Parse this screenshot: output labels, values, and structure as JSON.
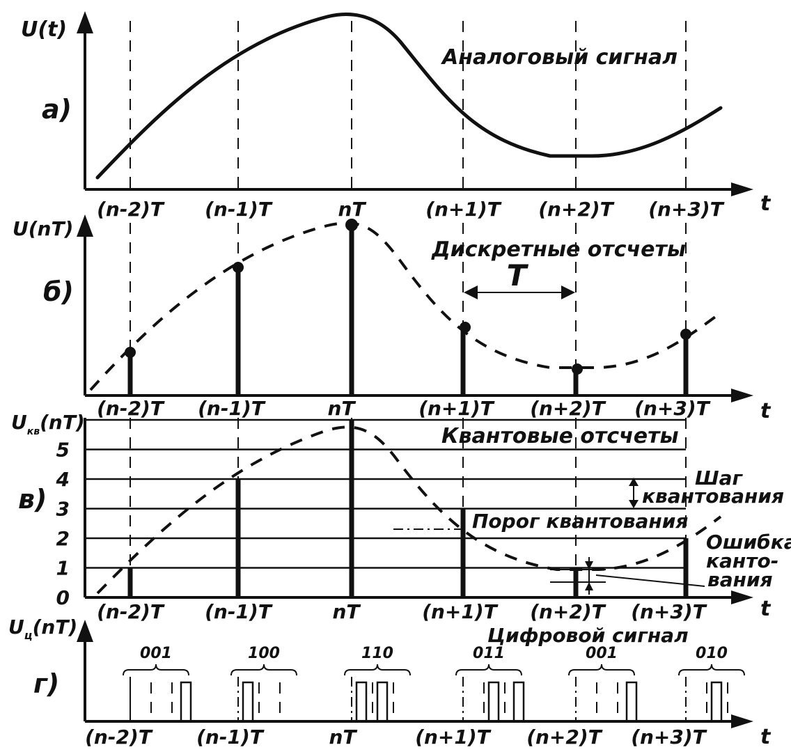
{
  "ticks": [
    "(n-2)T",
    "(n-1)T",
    "nT",
    "(n+1)T",
    "(n+2)T",
    "(n+3)T"
  ],
  "panel_a": {
    "letter": "а)",
    "y_axis_label": "U(t)",
    "x_axis_label": "t",
    "caption": "Аналоговый сигнал"
  },
  "panel_b": {
    "letter": "б)",
    "y_axis_label": "U(nT)",
    "x_axis_label": "t",
    "caption": "Дискретные отсчеты",
    "period_label": "T"
  },
  "panel_c": {
    "letter": "в)",
    "y_axis_label_main": "U",
    "y_axis_label_sub": "кв",
    "y_axis_label_tail": "(nT)",
    "x_axis_label": "t",
    "caption": "Квантовые отсчеты",
    "levels": [
      "0",
      "1",
      "2",
      "3",
      "4",
      "5"
    ],
    "quant_values": [
      1,
      4,
      6,
      3,
      1,
      2
    ],
    "step_label_1": "Шаг",
    "step_label_2": "квантования",
    "threshold_label": "Порог квантования",
    "error_label_1": "Ошибка",
    "error_label_2": "канто-",
    "error_label_3": "вания"
  },
  "panel_d": {
    "letter": "г)",
    "y_axis_label_main": "U",
    "y_axis_label_sub": "ц",
    "y_axis_label_tail": "(nT)",
    "x_axis_label": "t",
    "caption": "Цифровой сигнал",
    "codes": [
      "001",
      "100",
      "110",
      "011",
      "001",
      "010"
    ]
  }
}
